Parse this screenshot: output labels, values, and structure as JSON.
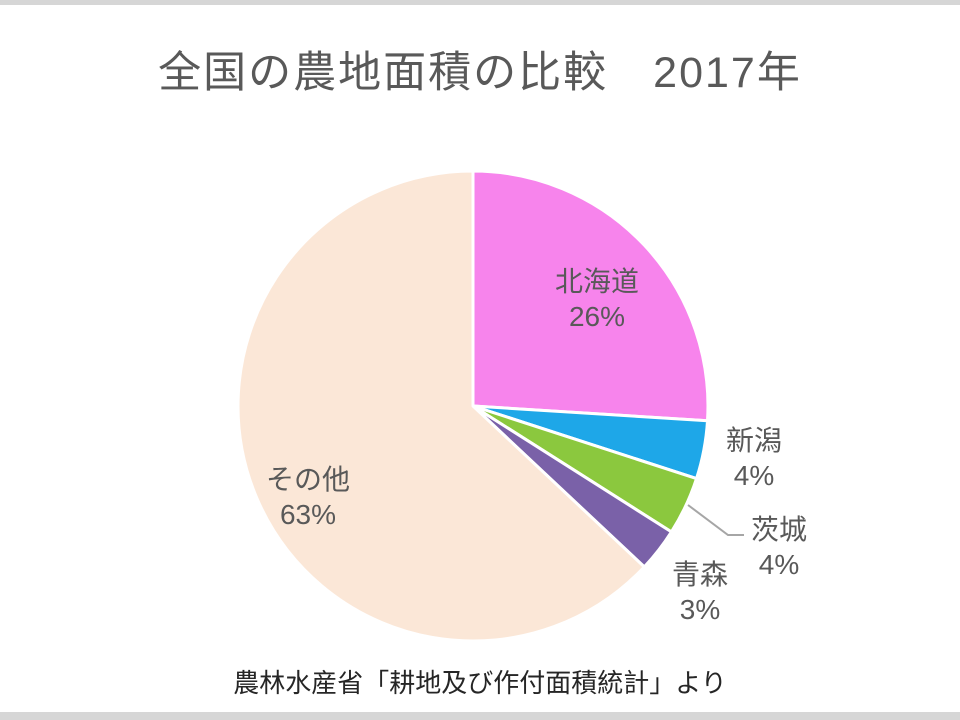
{
  "slide": {
    "title": "全国の農地面積の比較　2017年",
    "source_caption": "農林水産省「耕地及び作付面積統計」より"
  },
  "chart_data": {
    "type": "pie",
    "title": "全国の農地面積の比較　2017年",
    "source_note": "農林水産省「耕地及び作付面積統計」より",
    "value_unit": "percent",
    "direction": "clockwise",
    "start_angle_deg": 0,
    "label_color": "#595959",
    "slice_border_color": "#FFFFFF",
    "leader_line_color": "#A6A6A6",
    "slices": [
      {
        "label": "北海道",
        "value": 26,
        "display": "26%",
        "color": "#F784EC"
      },
      {
        "label": "新潟",
        "value": 4,
        "display": "4%",
        "color": "#1EA7E8"
      },
      {
        "label": "茨城",
        "value": 4,
        "display": "4%",
        "color": "#8BC83E"
      },
      {
        "label": "青森",
        "value": 3,
        "display": "3%",
        "color": "#7A61A8"
      },
      {
        "label": "その他",
        "value": 63,
        "display": "63%",
        "color": "#FBE7D7"
      }
    ]
  }
}
